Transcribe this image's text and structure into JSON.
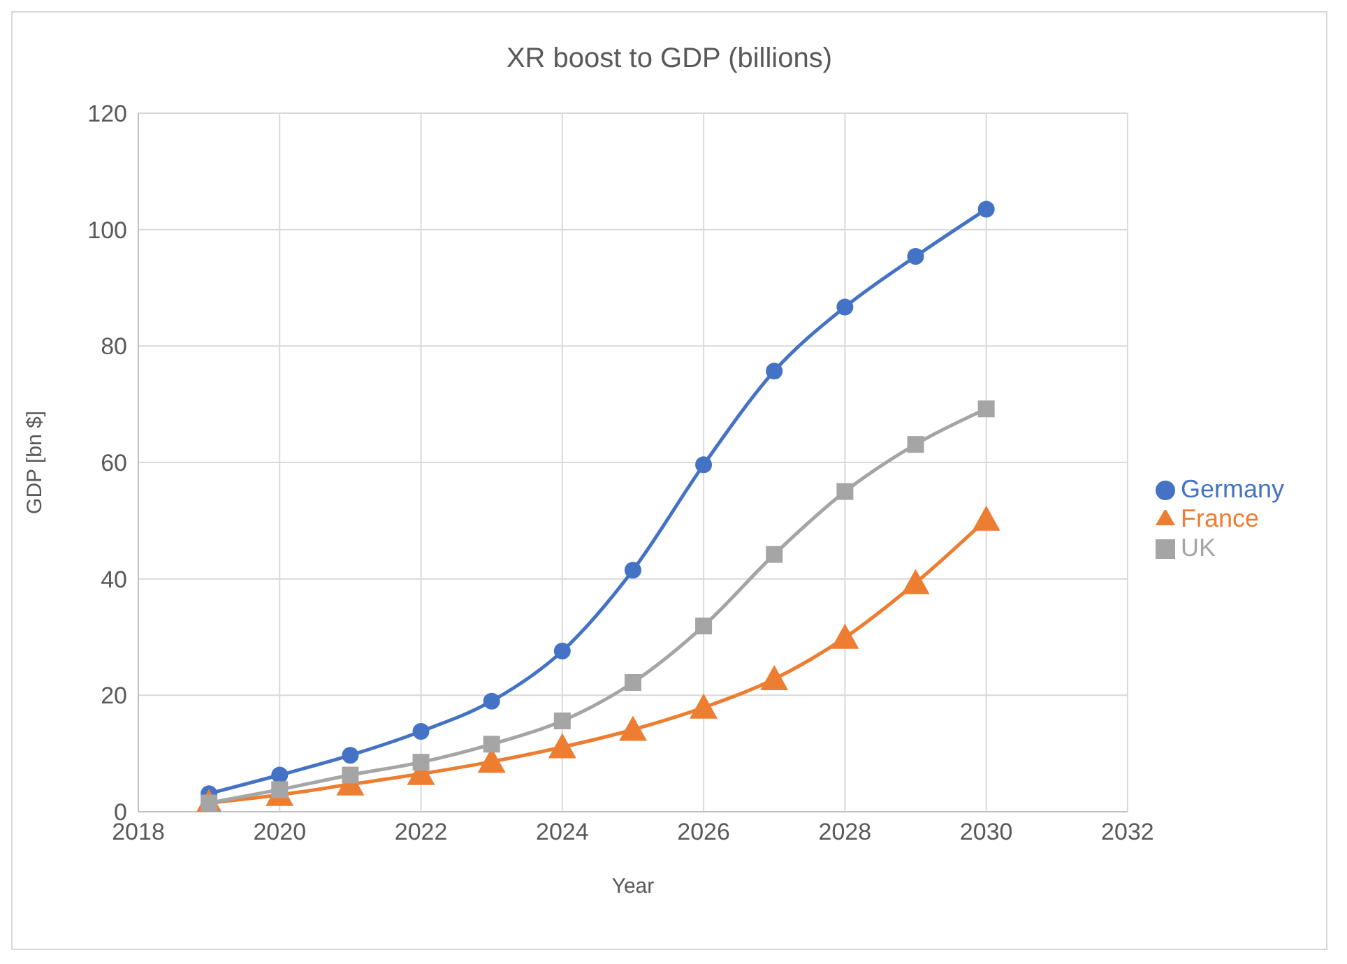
{
  "chart_data": {
    "type": "line",
    "title": "XR boost to GDP (billions)",
    "xlabel": "Year",
    "ylabel": "GDP [bn $]",
    "x": [
      2019,
      2020,
      2021,
      2022,
      2023,
      2024,
      2025,
      2026,
      2027,
      2028,
      2029,
      2030
    ],
    "series": [
      {
        "name": "Germany",
        "color": "#4472c4",
        "marker": "circle",
        "values": [
          3.1,
          6.3,
          9.7,
          13.8,
          19.0,
          27.6,
          41.5,
          59.6,
          75.7,
          86.7,
          95.4,
          103.5
        ]
      },
      {
        "name": "France",
        "color": "#ed7d31",
        "marker": "triangle",
        "values": [
          1.5,
          2.9,
          4.7,
          6.5,
          8.6,
          11.1,
          14.1,
          17.9,
          22.8,
          29.9,
          39.3,
          50.2
        ]
      },
      {
        "name": "UK",
        "color": "#a5a5a5",
        "marker": "square",
        "values": [
          1.5,
          3.8,
          6.3,
          8.5,
          11.6,
          15.6,
          22.2,
          31.9,
          44.2,
          55.0,
          63.1,
          69.2
        ]
      }
    ],
    "xlim": [
      2018,
      2032
    ],
    "xticks": [
      2018,
      2020,
      2022,
      2024,
      2026,
      2028,
      2030,
      2032
    ],
    "ylim": [
      0,
      120
    ],
    "yticks": [
      0,
      20,
      40,
      60,
      80,
      100,
      120
    ],
    "grid": true,
    "legend": "right",
    "line_style": "solid"
  }
}
